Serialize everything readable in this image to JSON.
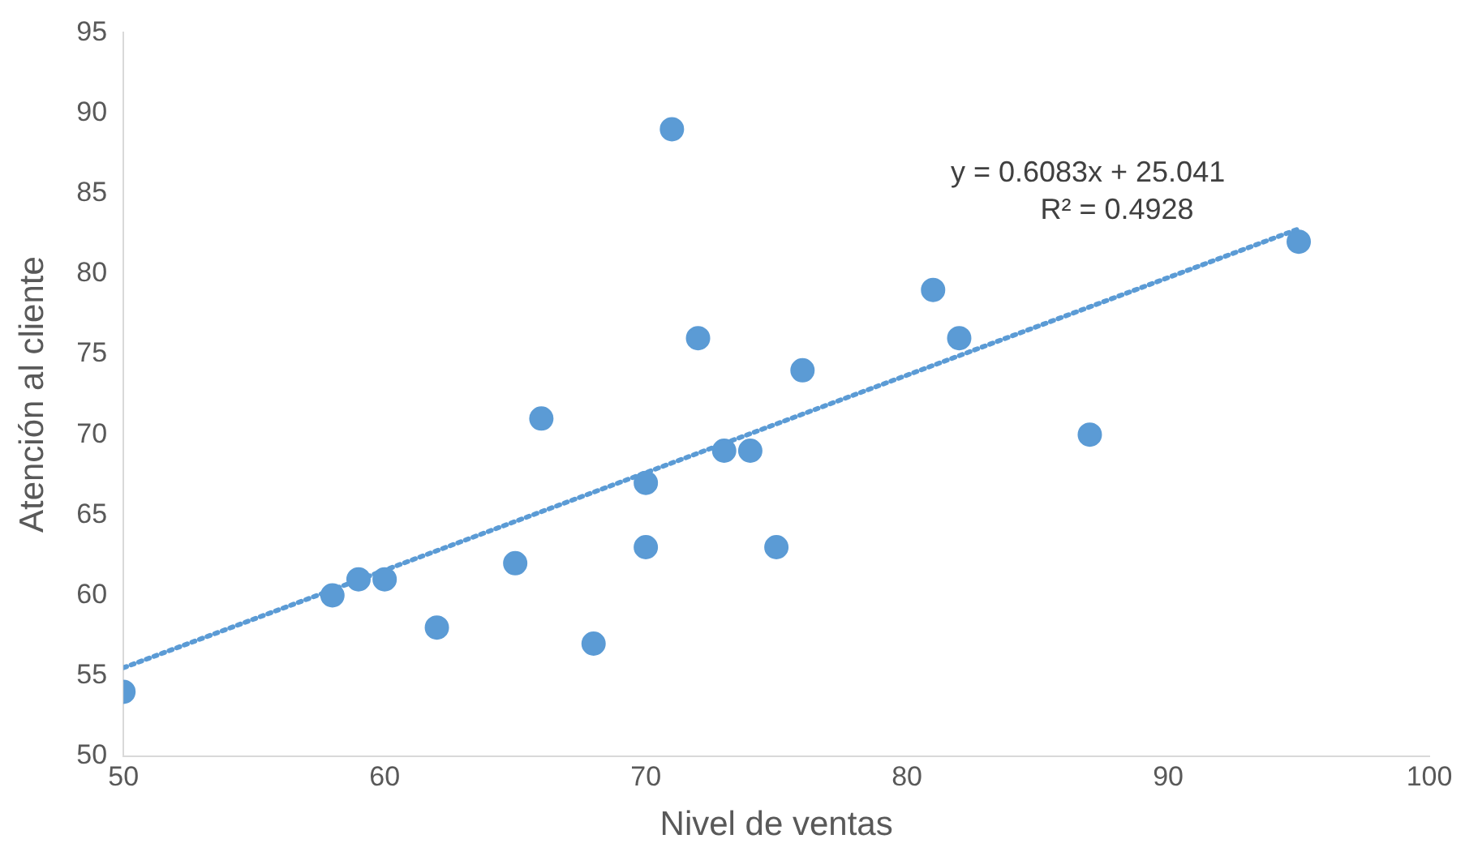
{
  "chart_data": {
    "type": "scatter",
    "xlabel": "Nivel de ventas",
    "ylabel": "Atención al cliente",
    "xlim": [
      50,
      100
    ],
    "xticks": [
      50,
      60,
      70,
      80,
      90,
      100
    ],
    "ylim": [
      50,
      95
    ],
    "yticks": [
      50,
      55,
      60,
      65,
      70,
      75,
      80,
      85,
      90,
      95
    ],
    "grid": false,
    "legend": false,
    "series": [
      {
        "type": "scatter",
        "marker": "circle",
        "color": "#5b9bd5",
        "x": [
          50,
          58,
          59,
          60,
          62,
          65,
          66,
          68,
          70,
          70,
          71,
          72,
          73,
          74,
          75,
          76,
          81,
          82,
          87,
          95
        ],
        "values": [
          54,
          60,
          61,
          61,
          58,
          62,
          71,
          57,
          67,
          63,
          89,
          76,
          69,
          69,
          63,
          74,
          79,
          76,
          70,
          82
        ]
      },
      {
        "type": "line",
        "marker": "none",
        "color": "#5b9bd5",
        "line_style": "dotted",
        "x": [
          50,
          95
        ],
        "values": [
          55.5,
          82.8
        ]
      }
    ],
    "annotations": [
      "y = 0.6083x + 25.041",
      "R² = 0.4928"
    ]
  }
}
